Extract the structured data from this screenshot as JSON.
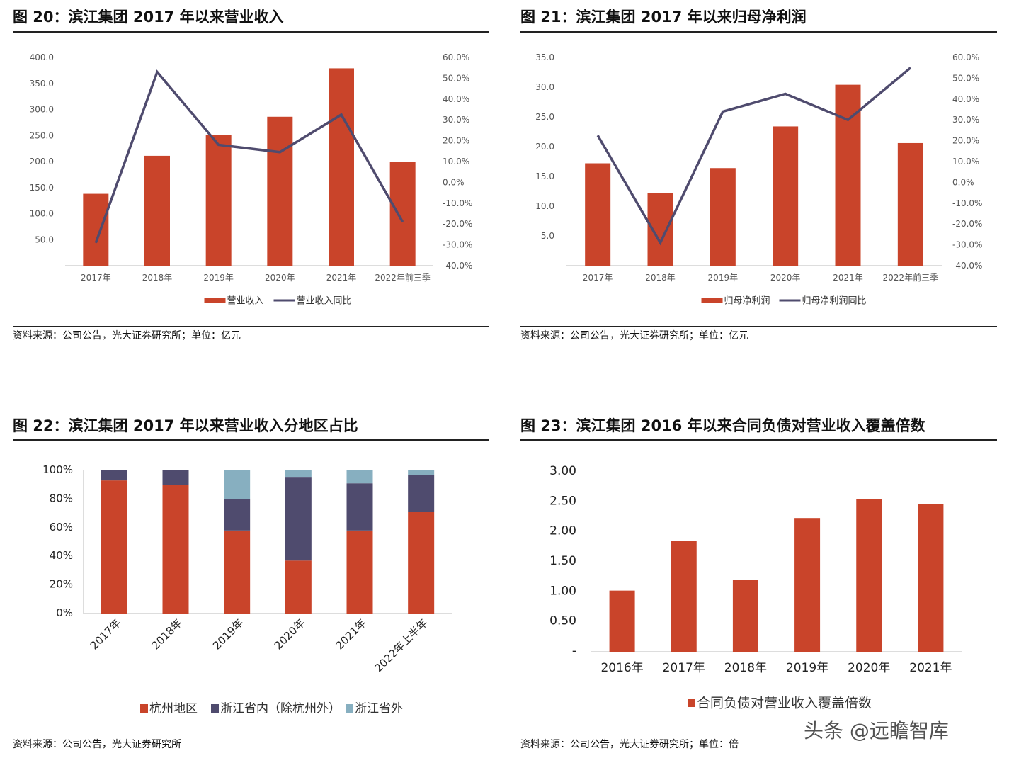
{
  "figures": [
    {
      "title": "图 20：滨江集团 2017 年以来营业收入",
      "source": "资料来源：公司公告，光大证券研究所；单位：亿元"
    },
    {
      "title": "图 21：滨江集团 2017 年以来归母净利润",
      "source": "资料来源：公司公告，光大证券研究所；单位：亿元"
    },
    {
      "title": "图 22：滨江集团 2017 年以来营业收入分地区占比",
      "source": "资料来源：公司公告，光大证券研究所"
    },
    {
      "title": "图 23：滨江集团 2016 年以来合同负债对营业收入覆盖倍数",
      "source": "资料来源：公司公告，光大证券研究所；单位：倍"
    }
  ],
  "watermark": "头条 @远瞻智库",
  "colors": {
    "bar": "#C9442A",
    "line": "#4F4B6E",
    "third": "#87AFC0"
  },
  "chart_data": [
    {
      "type": "bar+line",
      "categories": [
        "2017年",
        "2018年",
        "2019年",
        "2020年",
        "2021年",
        "2022年前三季"
      ],
      "series": [
        {
          "name": "营业收入",
          "type": "bar",
          "axis": "left",
          "values": [
            138,
            211,
            251,
            286,
            379,
            199
          ]
        },
        {
          "name": "营业收入同比",
          "type": "line",
          "axis": "right",
          "values": [
            -29,
            53,
            18,
            14.5,
            32.5,
            -19
          ]
        }
      ],
      "ylim": [
        0,
        400
      ],
      "yticks": [
        "-",
        "50.0",
        "100.0",
        "150.0",
        "200.0",
        "250.0",
        "300.0",
        "350.0",
        "400.0"
      ],
      "y2lim": [
        -40,
        60
      ],
      "y2ticks": [
        "-40.0%",
        "-30.0%",
        "-20.0%",
        "-10.0%",
        "0.0%",
        "10.0%",
        "20.0%",
        "30.0%",
        "40.0%",
        "50.0%",
        "60.0%"
      ],
      "legend": "bottom"
    },
    {
      "type": "bar+line",
      "categories": [
        "2017年",
        "2018年",
        "2019年",
        "2020年",
        "2021年",
        "2022年前三季"
      ],
      "series": [
        {
          "name": "归母净利润",
          "type": "bar",
          "axis": "left",
          "values": [
            17.2,
            12.2,
            16.4,
            23.4,
            30.4,
            20.6
          ]
        },
        {
          "name": "归母净利润同比",
          "type": "line",
          "axis": "right",
          "values": [
            22.5,
            -29,
            34,
            42.5,
            30,
            55
          ]
        }
      ],
      "ylim": [
        0,
        35
      ],
      "yticks": [
        "-",
        "5.0",
        "10.0",
        "15.0",
        "20.0",
        "25.0",
        "30.0",
        "35.0"
      ],
      "y2lim": [
        -40,
        60
      ],
      "y2ticks": [
        "-40.0%",
        "-30.0%",
        "-20.0%",
        "-10.0%",
        "0.0%",
        "10.0%",
        "20.0%",
        "30.0%",
        "40.0%",
        "50.0%",
        "60.0%"
      ],
      "legend": "bottom"
    },
    {
      "type": "stacked-bar",
      "categories": [
        "2017年",
        "2018年",
        "2019年",
        "2020年",
        "2021年",
        "2022年上半年"
      ],
      "series": [
        {
          "name": "杭州地区",
          "values": [
            93,
            90,
            58,
            37,
            58,
            71
          ]
        },
        {
          "name": "浙江省内（除杭州外）",
          "values": [
            7,
            10,
            22,
            58,
            33,
            26
          ]
        },
        {
          "name": "浙江省外",
          "values": [
            0,
            0,
            20,
            5,
            9,
            3
          ]
        }
      ],
      "ylim": [
        0,
        100
      ],
      "yticks": [
        "0%",
        "20%",
        "40%",
        "60%",
        "80%",
        "100%"
      ],
      "legend": "bottom"
    },
    {
      "type": "bar",
      "categories": [
        "2016年",
        "2017年",
        "2018年",
        "2019年",
        "2020年",
        "2021年"
      ],
      "series": [
        {
          "name": "合同负债对营业收入覆盖倍数",
          "values": [
            1.02,
            1.85,
            1.2,
            2.23,
            2.55,
            2.46
          ]
        }
      ],
      "ylim": [
        0,
        3
      ],
      "yticks": [
        "-",
        "0.50",
        "1.00",
        "1.50",
        "2.00",
        "2.50",
        "3.00"
      ],
      "legend": "bottom"
    }
  ]
}
